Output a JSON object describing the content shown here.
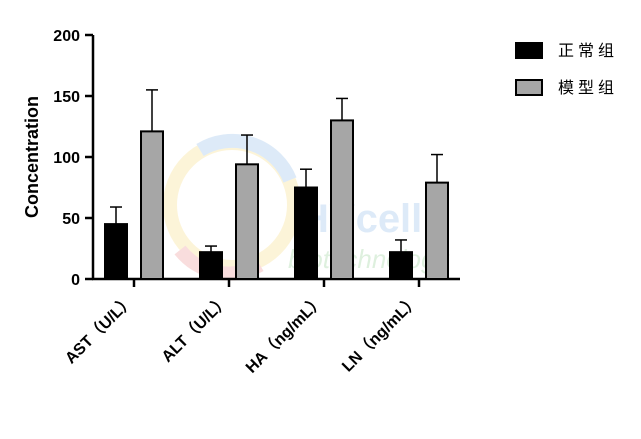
{
  "chart_data": {
    "type": "bar",
    "ylabel": "Concentration",
    "ylim": [
      0,
      200
    ],
    "yticks": [
      0,
      50,
      100,
      150,
      200
    ],
    "categories": [
      "AST（U/L）",
      "ALT（U/L）",
      "HA（ng/mL）",
      "LN（ng/mL）"
    ],
    "series": [
      {
        "name": "正常组",
        "color": "#000000",
        "values": [
          45,
          22,
          75,
          22
        ],
        "error": [
          14,
          5,
          15,
          10
        ]
      },
      {
        "name": "模型组",
        "color": "#a6a6a6",
        "values": [
          121,
          94,
          130,
          79
        ],
        "error": [
          34,
          24,
          18,
          23
        ]
      }
    ],
    "legend_position": "top-right",
    "grid": false,
    "watermark": "HYcell biotechnology"
  }
}
